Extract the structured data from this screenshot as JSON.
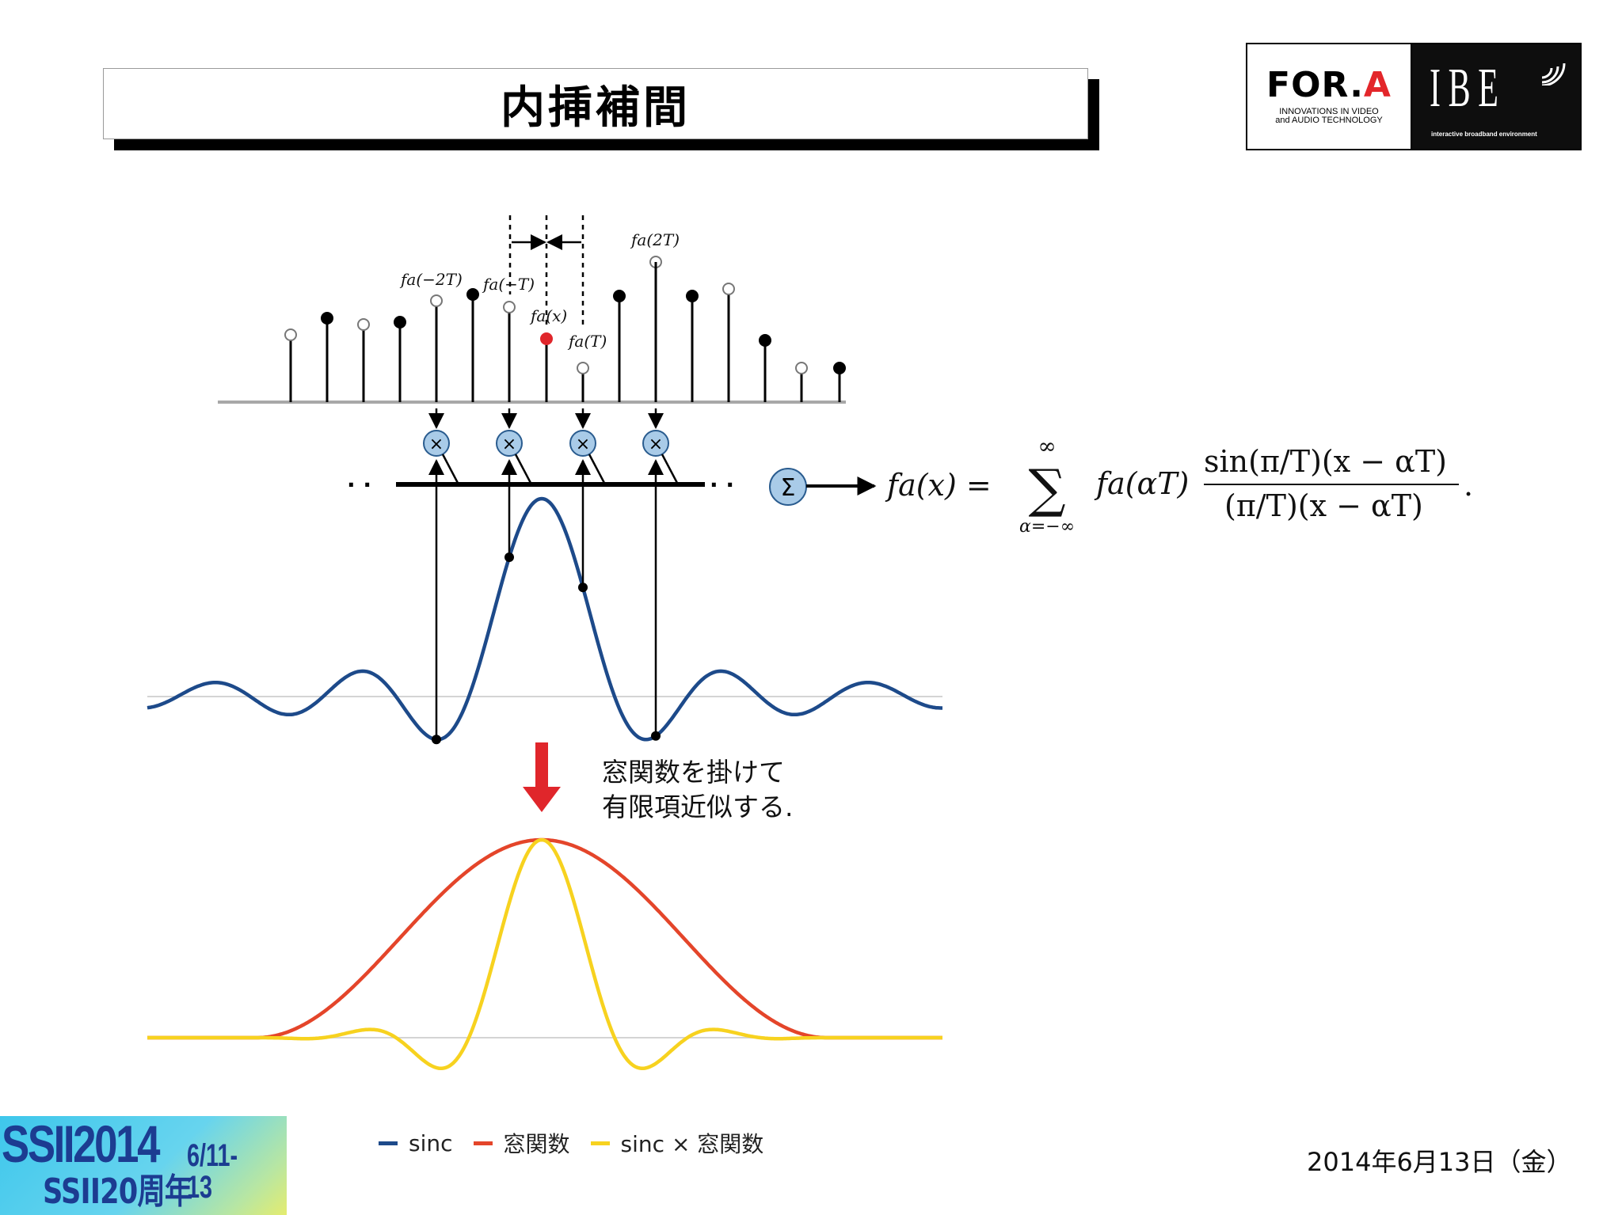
{
  "title": "内挿補間",
  "logo": {
    "brand_main": "FOR.",
    "brand_accent": "A",
    "tagline_line1": "INNOVATIONS IN VIDEO",
    "tagline_line2": "and AUDIO TECHNOLOGY",
    "ibe": "IBE",
    "ibe_tagline": "interactive broadband environment"
  },
  "diagram": {
    "sample_labels": {
      "m2T": "fa(−2T)",
      "mT": "fa(−T)",
      "x": "fa(x)",
      "T": "fa(T)",
      "twoT": "fa(2T)"
    },
    "multiply_symbol": "×",
    "sum_symbol": "Σ",
    "ellipsis": "· ·",
    "formula": {
      "lhs": "fa(x) =",
      "sum_upper": "∞",
      "sum_lower": "α=−∞",
      "term": "fa(αT)",
      "numerator": "sin(π/T)(x − αT)",
      "denominator": "(π/T)(x − αT)",
      "end": "."
    }
  },
  "note": {
    "line1": "窓関数を掛けて",
    "line2": "有限項近似する."
  },
  "legend": [
    {
      "label": "sinc",
      "color": "#1d4a8a"
    },
    {
      "label": "窓関数",
      "color": "#e4452a"
    },
    {
      "label": "sinc × 窓関数",
      "color": "#f7d21f"
    }
  ],
  "colors": {
    "sinc": "#1d4a8a",
    "window": "#e4452a",
    "windowed": "#f7d21f",
    "arrow": "#e0262b",
    "multiplier": "#a9cbe8",
    "interp_point": "#e0262b"
  },
  "badge": {
    "year": "SSII2014",
    "dates": "6/11-13",
    "anniversary": "SSII20周年"
  },
  "date": "2014年6月13日（金）"
}
